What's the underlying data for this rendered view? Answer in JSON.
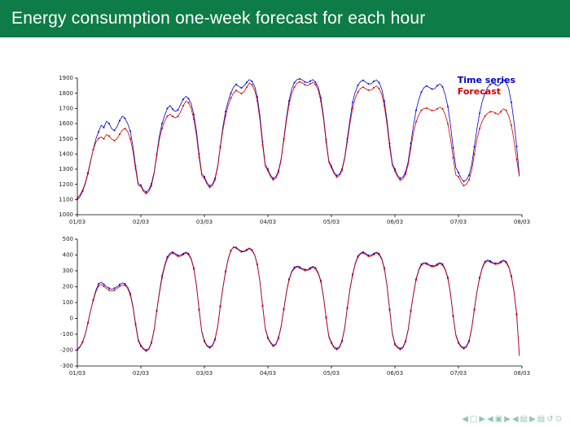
{
  "slide": {
    "title": "Energy consumption one-week forecast for each hour",
    "title_bar_color": "#0e7c46",
    "background_color": "#ffffff",
    "nav_color": "#95c7ad"
  },
  "legend": {
    "items": [
      {
        "label": "Time series",
        "color": "#0000cc"
      },
      {
        "label": "Forecast",
        "color": "#d40000"
      }
    ]
  },
  "nav_icons": [
    {
      "glyph": "◀",
      "name": "nav-slide-prev-icon"
    },
    {
      "glyph": "□",
      "name": "nav-slide-icon"
    },
    {
      "glyph": "▶",
      "name": "nav-slide-next-icon"
    },
    {
      "glyph": "◀",
      "name": "nav-frame-prev-icon"
    },
    {
      "glyph": "▣",
      "name": "nav-frame-icon"
    },
    {
      "glyph": "▶",
      "name": "nav-frame-next-icon"
    },
    {
      "glyph": "◀",
      "name": "nav-section-prev-icon"
    },
    {
      "glyph": "▤",
      "name": "nav-section-icon"
    },
    {
      "glyph": "▶",
      "name": "nav-section-next-icon"
    },
    {
      "glyph": "▤",
      "name": "nav-doc-icon"
    },
    {
      "glyph": "↺",
      "name": "nav-back-icon"
    },
    {
      "glyph": "⊙",
      "name": "nav-find-icon"
    }
  ],
  "chart_data": [
    {
      "type": "line",
      "title": "",
      "xlabel": "",
      "ylabel": "",
      "x_tick_labels": [
        "01/03",
        "02/03",
        "03/03",
        "04/03",
        "05/03",
        "06/03",
        "07/03",
        "08/03"
      ],
      "x_unit": "hour (168 hourly points over one week)",
      "ylim": [
        1000,
        1900
      ],
      "yticks": [
        1000,
        1100,
        1200,
        1300,
        1400,
        1500,
        1600,
        1700,
        1800,
        1900
      ],
      "grid": false,
      "legend_position": "top-right",
      "series": [
        {
          "name": "Time series",
          "color": "#0000cc",
          "values_by_day": [
            [
              1100,
              1120,
              1155,
              1205,
              1270,
              1350,
              1430,
              1500,
              1545,
              1590,
              1575,
              1615,
              1600,
              1565,
              1555,
              1580,
              1620,
              1650,
              1635,
              1600,
              1550,
              1450,
              1320,
              1205
            ],
            [
              1195,
              1160,
              1150,
              1165,
              1205,
              1280,
              1400,
              1520,
              1600,
              1655,
              1700,
              1720,
              1695,
              1680,
              1690,
              1725,
              1760,
              1780,
              1765,
              1730,
              1660,
              1550,
              1400,
              1270
            ],
            [
              1250,
              1210,
              1190,
              1200,
              1240,
              1320,
              1450,
              1580,
              1680,
              1750,
              1800,
              1840,
              1858,
              1845,
              1835,
              1850,
              1872,
              1890,
              1878,
              1845,
              1775,
              1650,
              1480,
              1330
            ],
            [
              1300,
              1260,
              1240,
              1250,
              1290,
              1370,
              1500,
              1640,
              1750,
              1830,
              1870,
              1890,
              1895,
              1888,
              1875,
              1870,
              1880,
              1890,
              1872,
              1840,
              1770,
              1650,
              1495,
              1355
            ],
            [
              1320,
              1280,
              1258,
              1266,
              1300,
              1378,
              1500,
              1628,
              1740,
              1808,
              1852,
              1878,
              1885,
              1872,
              1862,
              1862,
              1878,
              1888,
              1870,
              1828,
              1748,
              1620,
              1468,
              1338
            ],
            [
              1300,
              1258,
              1240,
              1248,
              1280,
              1350,
              1468,
              1588,
              1688,
              1758,
              1808,
              1838,
              1848,
              1838,
              1828,
              1830,
              1850,
              1862,
              1842,
              1792,
              1712,
              1588,
              1440,
              1310
            ],
            [
              1278,
              1240,
              1220,
              1230,
              1260,
              1330,
              1448,
              1568,
              1668,
              1748,
              1798,
              1838,
              1858,
              1868,
              1858,
              1848,
              1868,
              1888,
              1872,
              1828,
              1740,
              1608,
              1450,
              1258
            ]
          ]
        },
        {
          "name": "Forecast",
          "color": "#d40000",
          "values_by_day": [
            [
              1110,
              1132,
              1162,
              1212,
              1278,
              1358,
              1428,
              1478,
              1502,
              1512,
              1500,
              1528,
              1518,
              1498,
              1488,
              1502,
              1530,
              1558,
              1568,
              1548,
              1500,
              1418,
              1300,
              1192
            ],
            [
              1188,
              1152,
              1140,
              1152,
              1192,
              1270,
              1388,
              1498,
              1568,
              1618,
              1648,
              1662,
              1648,
              1638,
              1648,
              1678,
              1718,
              1748,
              1738,
              1700,
              1628,
              1520,
              1378,
              1258
            ],
            [
              1240,
              1200,
              1180,
              1190,
              1230,
              1310,
              1440,
              1560,
              1650,
              1720,
              1768,
              1800,
              1818,
              1808,
              1798,
              1810,
              1840,
              1868,
              1856,
              1818,
              1748,
              1620,
              1458,
              1318
            ],
            [
              1290,
              1250,
              1230,
              1240,
              1280,
              1360,
              1488,
              1618,
              1728,
              1798,
              1840,
              1866,
              1876,
              1868,
              1856,
              1850,
              1862,
              1872,
              1856,
              1820,
              1748,
              1630,
              1478,
              1345
            ],
            [
              1310,
              1270,
              1248,
              1256,
              1290,
              1368,
              1480,
              1600,
              1700,
              1768,
              1808,
              1832,
              1840,
              1830,
              1820,
              1820,
              1836,
              1848,
              1832,
              1792,
              1715,
              1592,
              1445,
              1325
            ],
            [
              1288,
              1248,
              1228,
              1236,
              1266,
              1330,
              1440,
              1540,
              1612,
              1658,
              1688,
              1700,
              1702,
              1694,
              1686,
              1686,
              1698,
              1708,
              1698,
              1660,
              1598,
              1498,
              1375,
              1262
            ],
            [
              1250,
              1212,
              1192,
              1200,
              1230,
              1292,
              1398,
              1498,
              1568,
              1618,
              1650,
              1668,
              1678,
              1678,
              1668,
              1660,
              1678,
              1698,
              1688,
              1650,
              1588,
              1488,
              1365,
              1252
            ]
          ]
        }
      ]
    },
    {
      "type": "line",
      "title": "",
      "xlabel": "",
      "ylabel": "",
      "x_tick_labels": [
        "01/03",
        "02/03",
        "03/03",
        "04/03",
        "05/03",
        "06/03",
        "07/03",
        "08/03"
      ],
      "x_unit": "hour (168 hourly points over one week)",
      "ylim": [
        -300,
        500
      ],
      "yticks": [
        -300,
        -200,
        -100,
        0,
        100,
        200,
        300,
        400,
        500
      ],
      "grid": false,
      "legend_position": "none",
      "series": [
        {
          "name": "Time series",
          "color": "#0000cc",
          "values_by_day": [
            [
              -200,
              -180,
              -150,
              -100,
              -30,
              48,
              118,
              178,
              218,
              228,
              215,
              200,
              190,
              184,
              190,
              200,
              214,
              224,
              218,
              198,
              158,
              78,
              -32,
              -132
            ],
            [
              -170,
              -190,
              -200,
              -190,
              -150,
              -70,
              50,
              168,
              268,
              338,
              388,
              412,
              418,
              408,
              398,
              398,
              408,
              418,
              408,
              378,
              318,
              208,
              58,
              -82
            ],
            [
              -140,
              -170,
              -180,
              -170,
              -130,
              -50,
              78,
              198,
              298,
              378,
              428,
              448,
              444,
              430,
              420,
              420,
              430,
              440,
              428,
              398,
              338,
              228,
              78,
              -62
            ],
            [
              -120,
              -150,
              -170,
              -160,
              -120,
              -48,
              60,
              168,
              248,
              298,
              322,
              330,
              324,
              314,
              308,
              308,
              318,
              328,
              318,
              288,
              238,
              138,
              8,
              -112
            ],
            [
              -150,
              -180,
              -190,
              -180,
              -140,
              -58,
              68,
              188,
              278,
              348,
              392,
              412,
              418,
              408,
              398,
              398,
              408,
              418,
              408,
              378,
              318,
              208,
              58,
              -92
            ],
            [
              -160,
              -180,
              -190,
              -180,
              -142,
              -68,
              50,
              158,
              248,
              308,
              342,
              352,
              348,
              338,
              332,
              332,
              342,
              352,
              342,
              312,
              258,
              158,
              18,
              -102
            ],
            [
              -150,
              -175,
              -185,
              -175,
              -140,
              -60,
              58,
              172,
              258,
              322,
              358,
              368,
              362,
              352,
              348,
              348,
              358,
              368,
              358,
              328,
              268,
              168,
              28,
              -230
            ]
          ]
        },
        {
          "name": "Forecast",
          "color": "#d40000",
          "values_by_day": [
            [
              -195,
              -176,
              -146,
              -96,
              -26,
              52,
              112,
              168,
              205,
              214,
              202,
              188,
              178,
              172,
              178,
              188,
              202,
              212,
              208,
              188,
              148,
              68,
              -42,
              -142
            ],
            [
              -176,
              -196,
              -206,
              -196,
              -156,
              -76,
              44,
              158,
              255,
              328,
              378,
              402,
              412,
              402,
              392,
              392,
              402,
              412,
              402,
              372,
              312,
              202,
              52,
              -88
            ],
            [
              -146,
              -176,
              -186,
              -176,
              -136,
              -56,
              72,
              192,
              292,
              372,
              425,
              452,
              448,
              434,
              424,
              424,
              434,
              444,
              432,
              402,
              342,
              232,
              82,
              -68
            ],
            [
              -126,
              -156,
              -176,
              -166,
              -126,
              -54,
              54,
              162,
              242,
              292,
              316,
              324,
              318,
              308,
              302,
              302,
              312,
              322,
              312,
              282,
              232,
              132,
              2,
              -118
            ],
            [
              -156,
              -186,
              -196,
              -186,
              -146,
              -64,
              62,
              182,
              272,
              342,
              386,
              406,
              412,
              402,
              392,
              392,
              402,
              412,
              402,
              372,
              312,
              202,
              52,
              -98
            ],
            [
              -166,
              -186,
              -196,
              -186,
              -148,
              -74,
              44,
              152,
              242,
              302,
              336,
              346,
              342,
              332,
              326,
              326,
              336,
              346,
              336,
              306,
              252,
              152,
              12,
              -108
            ],
            [
              -156,
              -181,
              -191,
              -181,
              -146,
              -66,
              52,
              166,
              252,
              316,
              352,
              362,
              356,
              346,
              342,
              342,
              352,
              362,
              352,
              322,
              262,
              162,
              22,
              -238
            ]
          ]
        }
      ]
    }
  ]
}
